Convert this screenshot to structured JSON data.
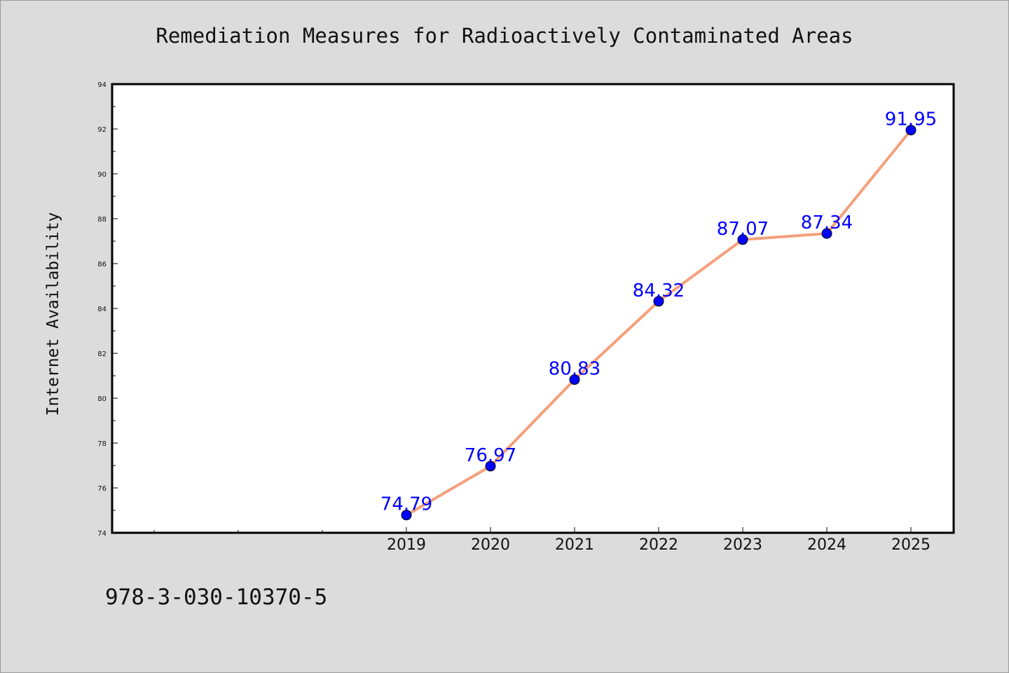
{
  "chart_data": {
    "type": "line",
    "title": "Remediation Measures for Radioactively Contaminated Areas",
    "xlabel": "",
    "ylabel": "Internet Availability",
    "categories": [
      "2019",
      "2020",
      "2021",
      "2022",
      "2023",
      "2024",
      "2025"
    ],
    "series": [
      {
        "values": [
          74.79,
          76.97,
          80.83,
          84.32,
          87.07,
          87.34,
          91.95
        ],
        "labels": [
          "74.79",
          "76.97",
          "80.83",
          "84.32",
          "87.07",
          "87.34",
          "91.95"
        ],
        "line_color": "#f4a07c",
        "marker_color": "#0000ff"
      }
    ],
    "ylim": [
      74,
      94
    ],
    "yticks": [
      "74",
      "76",
      "78",
      "80",
      "82",
      "84",
      "86",
      "88",
      "90",
      "92",
      "94"
    ],
    "grid": false,
    "plot_background": "#ffffff",
    "page_background": "#dcdcdc"
  },
  "footnote": "978-3-030-10370-5"
}
